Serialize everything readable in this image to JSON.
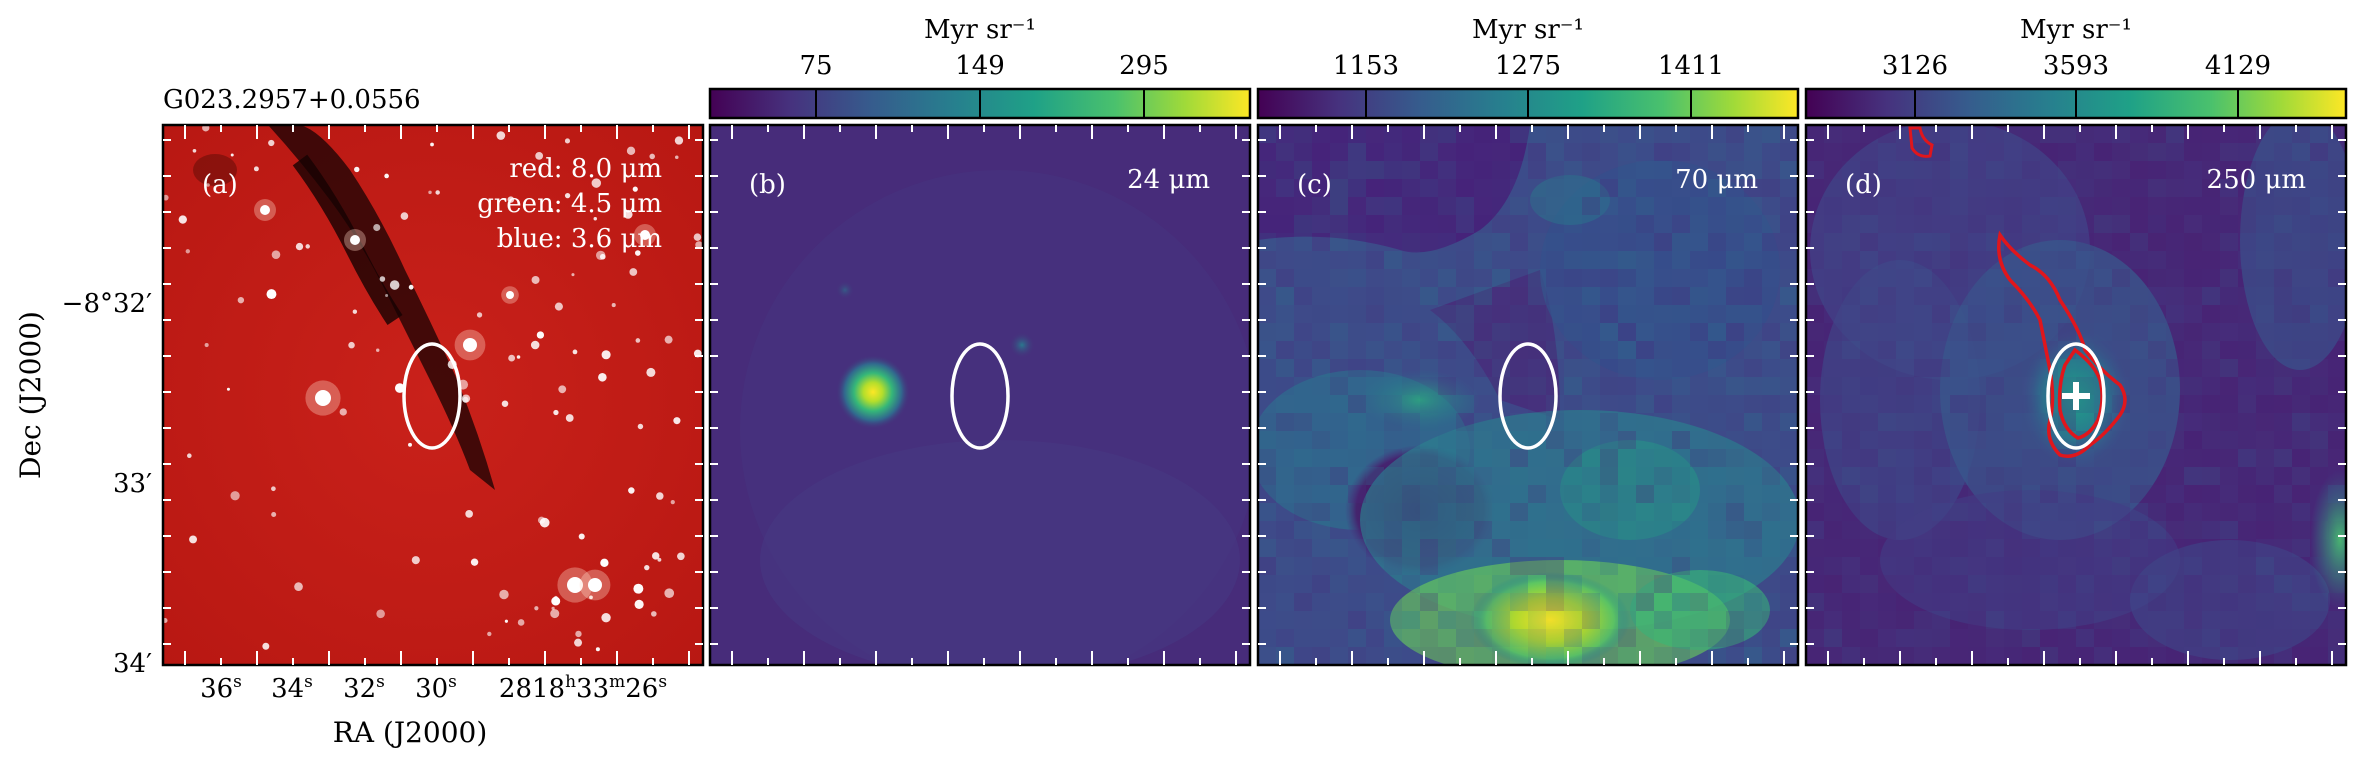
{
  "figure": {
    "source_name": "G023.2957+0.0556",
    "axes": {
      "xlabel": "RA (J2000)",
      "ylabel": "Dec (J2000)",
      "ra_ticks": [
        "36",
        "34",
        "32",
        "30",
        "28",
        "18",
        "33",
        "26"
      ],
      "ra_tick_suffix": [
        "s",
        "s",
        "s",
        "s",
        "",
        "h",
        "m",
        "s"
      ],
      "dec_ticks": [
        {
          "deg": "−8°32′",
          "label": "−8°32′"
        },
        {
          "label": "33′"
        },
        {
          "label": "34′"
        }
      ]
    },
    "colorbar_unit": "Myr sr⁻¹",
    "panels": [
      {
        "id": "a",
        "label": "(a)",
        "legend": [
          "red: 8.0 μm",
          "green: 4.5 μm",
          "blue: 3.6 μm"
        ]
      },
      {
        "id": "b",
        "label": "(b)",
        "wavelength": "24 μm",
        "colorbar_ticks": [
          "75",
          "149",
          "295"
        ]
      },
      {
        "id": "c",
        "label": "(c)",
        "wavelength": "70 μm",
        "colorbar_ticks": [
          "1153",
          "1275",
          "1411"
        ]
      },
      {
        "id": "d",
        "label": "(d)",
        "wavelength": "250 μm",
        "colorbar_ticks": [
          "3126",
          "3593",
          "4129"
        ]
      }
    ],
    "colors": {
      "viridis_low": "#440154",
      "viridis_mid": "#21918c",
      "viridis_high": "#fde725",
      "rgb_background": "#c01a12",
      "ellipse": "#ffffff",
      "contour": "#e0161c"
    }
  }
}
